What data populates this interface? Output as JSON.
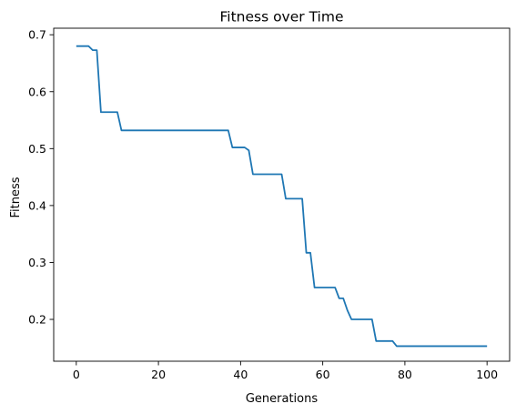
{
  "chart_data": {
    "type": "line",
    "title": "Fitness over Time",
    "xlabel": "Generations",
    "ylabel": "Fitness",
    "xlim": [
      -5.5,
      105.5
    ],
    "ylim": [
      0.1265,
      0.7115
    ],
    "x_ticks": [
      0,
      20,
      40,
      60,
      80,
      100
    ],
    "y_ticks": [
      0.2,
      0.3,
      0.4,
      0.5,
      0.6,
      0.7
    ],
    "x_tick_labels": [
      "0",
      "20",
      "40",
      "60",
      "80",
      "100"
    ],
    "y_tick_labels": [
      "0.2",
      "0.3",
      "0.4",
      "0.5",
      "0.6",
      "0.7"
    ],
    "grid": false,
    "legend": "none",
    "series": [
      {
        "color": "#1f77b4",
        "x": [
          0,
          3,
          4,
          5,
          6,
          7,
          10,
          11,
          37,
          38,
          41,
          42,
          43,
          50,
          51,
          55,
          56,
          57,
          58,
          63,
          64,
          65,
          66,
          67,
          72,
          73,
          77,
          78,
          100
        ],
        "y": [
          0.68,
          0.68,
          0.673,
          0.673,
          0.564,
          0.564,
          0.564,
          0.532,
          0.532,
          0.502,
          0.502,
          0.497,
          0.455,
          0.455,
          0.412,
          0.412,
          0.317,
          0.317,
          0.256,
          0.256,
          0.237,
          0.237,
          0.216,
          0.2,
          0.2,
          0.162,
          0.162,
          0.153,
          0.153
        ]
      }
    ]
  }
}
